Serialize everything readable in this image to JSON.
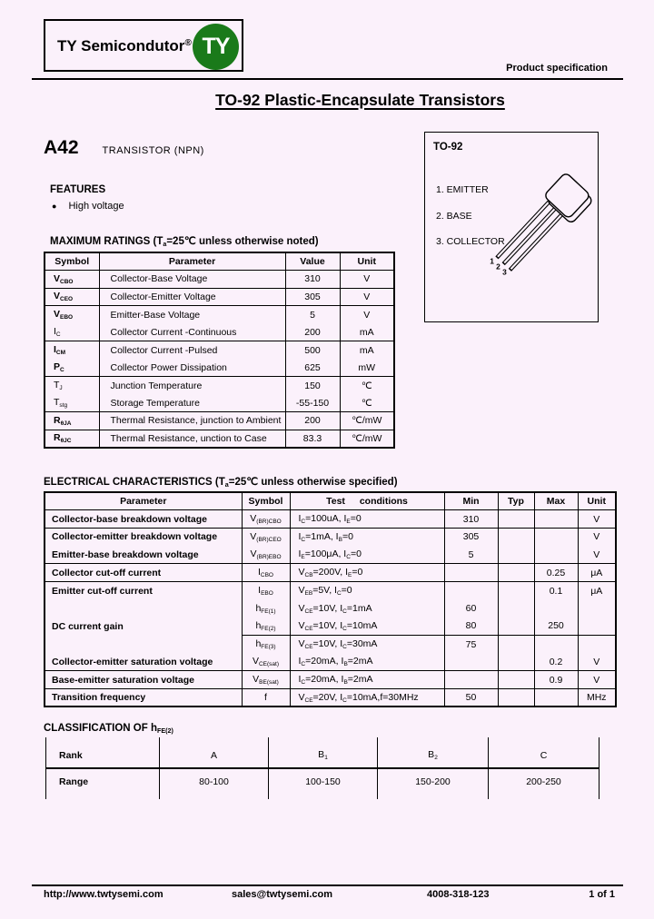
{
  "page": {
    "background": "#fbf1fb"
  },
  "header": {
    "brand": "TY Semicondutor",
    "registered_mark": "®",
    "badge_text": "TY",
    "badge_color": "#1a7a1a",
    "product_spec": "Product specification"
  },
  "title": "TO-92 Plastic-Encapsulate Transistors",
  "part": {
    "name": "A42",
    "description": "TRANSISTOR (NPN)"
  },
  "package": {
    "label": "TO-92",
    "pins": [
      "1. EMITTER",
      "2. BASE",
      "3. COLLECTOR"
    ],
    "lead_numbers": [
      "1",
      "2",
      "3"
    ]
  },
  "features": {
    "heading": "FEATURES",
    "items": [
      "High voltage"
    ]
  },
  "max_ratings": {
    "heading": "MAXIMUM RATINGS (T~a~=25℃ unless otherwise noted)",
    "columns": [
      "Symbol",
      "Parameter",
      "Value",
      "Unit"
    ],
    "rows": [
      {
        "symbol": "V~CBO~",
        "parameter": "Collector-Base Voltage",
        "value": "310",
        "unit": "V"
      },
      {
        "symbol": "V~CEO~",
        "parameter": "Collector-Emitter Voltage",
        "value": "305",
        "unit": "V"
      },
      {
        "symbol": "V~EBO~",
        "parameter": "Emitter-Base Voltage",
        "value": "5",
        "unit": "V"
      },
      {
        "symbol": "I~C~",
        "parameter": "Collector Current -Continuous",
        "value": "200",
        "unit": "mA"
      },
      {
        "symbol": "I~CM~",
        "parameter": "Collector Current -Pulsed",
        "value": "500",
        "unit": "mA"
      },
      {
        "symbol": "P~C~",
        "parameter": "Collector Power Dissipation",
        "value": "625",
        "unit": "mW"
      },
      {
        "symbol": "T~J~",
        "parameter": "Junction Temperature",
        "value": "150",
        "unit": "℃"
      },
      {
        "symbol": "T~stg~",
        "parameter": "Storage Temperature",
        "value": "-55-150",
        "unit": "℃"
      },
      {
        "symbol": "R~θJA~",
        "parameter": "Thermal Resistance, junction to Ambient",
        "value": "200",
        "unit": "℃/mW"
      },
      {
        "symbol": "R~θJC~",
        "parameter": "Thermal Resistance, unction to Case",
        "value": "83.3",
        "unit": "℃/mW"
      }
    ]
  },
  "electrical": {
    "heading": "ELECTRICAL CHARACTERISTICS (T~a~=25℃ unless otherwise specified)",
    "columns": [
      "Parameter",
      "Symbol",
      "Test conditions",
      "Min",
      "Typ",
      "Max",
      "Unit"
    ],
    "rows": [
      {
        "parameter": "Collector-base breakdown voltage",
        "symbol": "V~(BR)CBO~",
        "conditions": "I~C~=100uA, I~E~=0",
        "min": "310",
        "typ": "",
        "max": "",
        "unit": "V"
      },
      {
        "parameter": "Collector-emitter breakdown voltage",
        "symbol": "V~(BR)CEO~",
        "conditions": "I~C~=1mA, I~B~=0",
        "min": "305",
        "typ": "",
        "max": "",
        "unit": "V"
      },
      {
        "parameter": "Emitter-base breakdown voltage",
        "symbol": "V~(BR)EBO~",
        "conditions": "I~E~=100μA, I~C~=0",
        "min": "5",
        "typ": "",
        "max": "",
        "unit": "V"
      },
      {
        "parameter": "Collector cut-off current",
        "symbol": "I~CBO~",
        "conditions": "V~CB~=200V, I~E~=0",
        "min": "",
        "typ": "",
        "max": "0.25",
        "unit": "μA"
      },
      {
        "parameter": "Emitter cut-off current",
        "symbol": "I~EBO~",
        "conditions": "V~EB~=5V, I~C~=0",
        "min": "",
        "typ": "",
        "max": "0.1",
        "unit": "μA"
      },
      {
        "parameter": "",
        "symbol": "h~FE(1)~",
        "conditions": "V~CE~=10V, I~C~=1mA",
        "min": "60",
        "typ": "",
        "max": "",
        "unit": ""
      },
      {
        "parameter": "DC current gain",
        "symbol": "h~FE(2)~",
        "conditions": "V~CE~=10V, I~C~=10mA",
        "min": "80",
        "typ": "",
        "max": "250",
        "unit": ""
      },
      {
        "parameter": "",
        "symbol": "h~FE(3)~",
        "conditions": "V~CE~=10V, I~C~=30mA",
        "min": "75",
        "typ": "",
        "max": "",
        "unit": ""
      },
      {
        "parameter": "Collector-emitter saturation voltage",
        "symbol": "V~CE(sat)~",
        "conditions": "I~C~=20mA, I~B~=2mA",
        "min": "",
        "typ": "",
        "max": "0.2",
        "unit": "V"
      },
      {
        "parameter": "Base-emitter saturation voltage",
        "symbol": "V~BE(sat)~",
        "conditions": "I~C~=20mA, I~B~=2mA",
        "min": "",
        "typ": "",
        "max": "0.9",
        "unit": "V"
      },
      {
        "parameter": "Transition frequency",
        "symbol": "f",
        "conditions": "V~CE~=20V, I~C~=10mA,f=30MHz",
        "min": "50",
        "typ": "",
        "max": "",
        "unit": "MHz"
      }
    ]
  },
  "classification": {
    "heading": "CLASSIFICATION OF h~FE(2)~",
    "row_labels": [
      "Rank",
      "Range"
    ],
    "ranks": [
      "A",
      "B~1~",
      "B~2~",
      "C"
    ],
    "ranges": [
      "80-100",
      "100-150",
      "150-200",
      "200-250"
    ]
  },
  "footer": {
    "website": "http://www.twtysemi.com",
    "email": "sales@twtysemi.com",
    "phone": "4008-318-123",
    "page": "1 of 1"
  }
}
